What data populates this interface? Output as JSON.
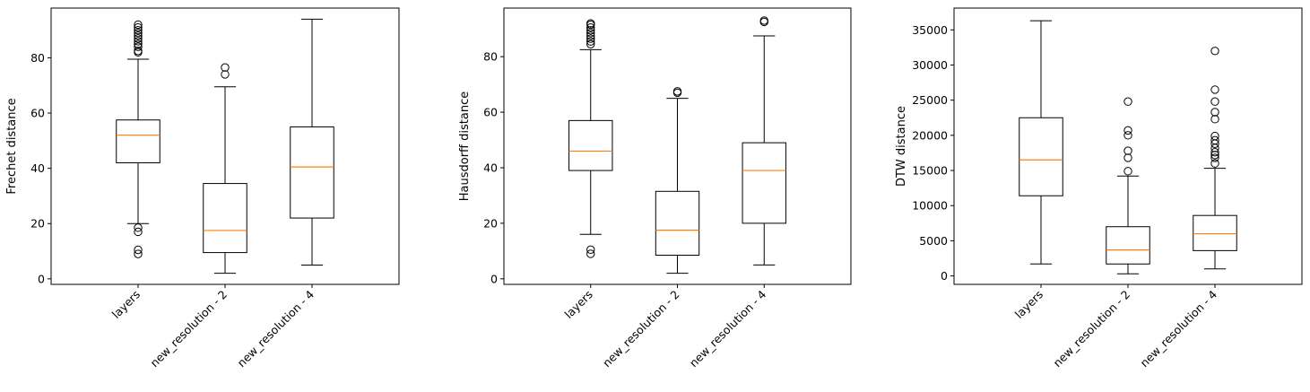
{
  "figure": {
    "median_color": "#ff7f0e",
    "box_color": "#000000",
    "background": "#ffffff"
  },
  "chart_data": [
    {
      "type": "box",
      "ylabel": "Frechet distance",
      "xlabel": "",
      "title": "",
      "categories": [
        "layers",
        "new_resolution - 2",
        "new_resolution - 4"
      ],
      "ylim": [
        -2,
        98
      ],
      "yticks": [
        0,
        20,
        40,
        60,
        80
      ],
      "grid": false,
      "boxes": [
        {
          "whisker_low": 20,
          "q1": 42,
          "median": 52,
          "q3": 57.5,
          "whisker_high": 79.5,
          "outliers": [
            82,
            82.5,
            84,
            85,
            86,
            87,
            88,
            89,
            90,
            91,
            92,
            17,
            18.5,
            9,
            10.5
          ]
        },
        {
          "whisker_low": 2,
          "q1": 9.5,
          "median": 17.5,
          "q3": 34.5,
          "whisker_high": 69.5,
          "outliers": [
            74,
            76.5
          ]
        },
        {
          "whisker_low": 5,
          "q1": 22,
          "median": 40.5,
          "q3": 55,
          "whisker_high": 94,
          "outliers": []
        }
      ]
    },
    {
      "type": "box",
      "ylabel": "Hausdorff distance",
      "xlabel": "",
      "title": "",
      "categories": [
        "layers",
        "new_resolution - 2",
        "new_resolution - 4"
      ],
      "ylim": [
        -2,
        97.5
      ],
      "yticks": [
        0,
        20,
        40,
        60,
        80
      ],
      "grid": false,
      "boxes": [
        {
          "whisker_low": 16,
          "q1": 39,
          "median": 46,
          "q3": 57,
          "whisker_high": 82.5,
          "outliers": [
            84.5,
            85.5,
            86.5,
            87.5,
            88.5,
            89.5,
            90.5,
            91.5,
            92,
            9,
            10.5
          ]
        },
        {
          "whisker_low": 2,
          "q1": 8.5,
          "median": 17.5,
          "q3": 31.5,
          "whisker_high": 65,
          "outliers": [
            67,
            67.5
          ]
        },
        {
          "whisker_low": 5,
          "q1": 20,
          "median": 39,
          "q3": 49,
          "whisker_high": 87.5,
          "outliers": [
            92.5,
            93
          ]
        }
      ]
    },
    {
      "type": "box",
      "ylabel": "DTW distance",
      "xlabel": "",
      "title": "",
      "categories": [
        "layers",
        "new_resolution - 2",
        "new_resolution - 4"
      ],
      "ylim": [
        -1200,
        38100
      ],
      "yticks": [
        0,
        5000,
        10000,
        15000,
        20000,
        25000,
        30000,
        35000
      ],
      "grid": false,
      "boxes": [
        {
          "whisker_low": 1700,
          "q1": 11400,
          "median": 16500,
          "q3": 22500,
          "whisker_high": 36300,
          "outliers": []
        },
        {
          "whisker_low": 300,
          "q1": 1700,
          "median": 3700,
          "q3": 7000,
          "whisker_high": 14200,
          "outliers": [
            14900,
            16800,
            17800,
            20000,
            20700,
            24800
          ]
        },
        {
          "whisker_low": 1000,
          "q1": 3600,
          "median": 6000,
          "q3": 8600,
          "whisker_high": 15300,
          "outliers": [
            16000,
            16800,
            17200,
            17600,
            18200,
            18800,
            19300,
            19900,
            22300,
            23300,
            24800,
            26500,
            32000
          ]
        }
      ]
    }
  ]
}
